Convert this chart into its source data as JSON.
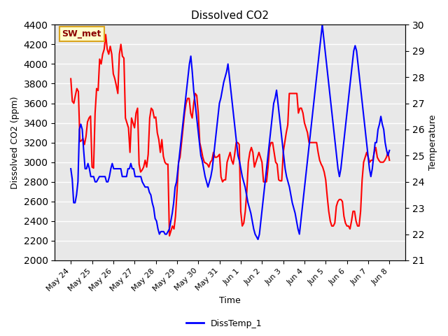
{
  "title": "Dissolved CO2",
  "xlabel": "Time",
  "ylabel_left": "Dissolved CO2 (ppm)",
  "ylabel_right": "Temperature",
  "annotation": "SW_met",
  "ylim_left": [
    2000,
    4400
  ],
  "ylim_right": [
    21.0,
    30.0
  ],
  "bg_color": "#e8e8e8",
  "plot_bg_color": "#e8e8e8",
  "line1_color": "red",
  "line2_color": "blue",
  "line2_label": "DissTemp_1",
  "xtick_labels": [
    "May 24",
    "May 25",
    "May 26",
    "May 27",
    "May 28",
    "May 29",
    "May 30",
    "May 31",
    "Jun 1",
    "Jun 2",
    "Jun 3",
    "Jun 4",
    "Jun 5",
    "Jun 6",
    "Jun 7",
    "Jun 8"
  ],
  "co2_data": [
    3850,
    3620,
    3600,
    3680,
    3750,
    3720,
    3210,
    3220,
    3240,
    3180,
    3260,
    3410,
    3450,
    3470,
    2950,
    2940,
    3500,
    3750,
    3730,
    4050,
    4000,
    4100,
    4150,
    4300,
    4150,
    4100,
    4180,
    4100,
    3900,
    3850,
    3780,
    3700,
    4100,
    4200,
    4080,
    4060,
    3450,
    3400,
    3350,
    3100,
    3450,
    3400,
    3350,
    3500,
    3550,
    2980,
    2900,
    2920,
    2950,
    3020,
    2950,
    3080,
    3450,
    3550,
    3530,
    3450,
    3460,
    3300,
    3230,
    3100,
    3230,
    3060,
    3000,
    2980,
    2980,
    2250,
    2300,
    2350,
    2320,
    2450,
    2700,
    3000,
    3050,
    3200,
    3350,
    3500,
    3600,
    3650,
    3650,
    3500,
    3450,
    3600,
    3700,
    3680,
    3500,
    3200,
    3130,
    3050,
    3000,
    2990,
    2980,
    2950,
    3000,
    3020,
    3100,
    3050,
    3050,
    3060,
    3080,
    2850,
    2800,
    2820,
    2820,
    3000,
    3050,
    3100,
    3020,
    2980,
    3080,
    3200,
    3200,
    3180,
    2500,
    2350,
    2380,
    2500,
    2700,
    3000,
    3100,
    3150,
    3100,
    2950,
    3000,
    3050,
    3100,
    3050,
    3000,
    2800,
    2800,
    2800,
    2950,
    3150,
    3200,
    3200,
    3100,
    3000,
    2980,
    2820,
    2810,
    2810,
    3100,
    3200,
    3300,
    3380,
    3700,
    3700,
    3700,
    3700,
    3700,
    3700,
    3500,
    3550,
    3550,
    3500,
    3400,
    3350,
    3300,
    3200,
    3200,
    3200,
    3200,
    3200,
    3200,
    3100,
    3020,
    2980,
    2950,
    2900,
    2820,
    2650,
    2500,
    2400,
    2350,
    2350,
    2380,
    2550,
    2600,
    2620,
    2620,
    2600,
    2450,
    2380,
    2350,
    2350,
    2320,
    2400,
    2500,
    2500,
    2400,
    2350,
    2350,
    2500,
    2820,
    3000,
    3050,
    3100,
    3050,
    3000,
    3020,
    3020,
    3100,
    3150,
    3050,
    3020,
    3000,
    3000,
    3000,
    3020,
    3050,
    3100,
    3020
  ],
  "temp_data": [
    24.5,
    24.1,
    23.2,
    23.2,
    23.5,
    24.0,
    26.0,
    26.2,
    26.0,
    25.2,
    24.5,
    24.5,
    24.7,
    24.5,
    24.2,
    24.2,
    24.2,
    24.0,
    24.0,
    24.1,
    24.2,
    24.2,
    24.2,
    24.2,
    24.2,
    24.0,
    24.0,
    24.2,
    24.5,
    24.7,
    24.5,
    24.5,
    24.5,
    24.5,
    24.5,
    24.5,
    24.2,
    24.2,
    24.2,
    24.2,
    24.5,
    24.5,
    24.7,
    24.5,
    24.5,
    24.2,
    24.2,
    24.2,
    24.2,
    24.2,
    24.0,
    23.9,
    23.8,
    23.8,
    23.8,
    23.6,
    23.5,
    23.2,
    23.0,
    22.6,
    22.5,
    22.2,
    22.0,
    22.1,
    22.1,
    22.1,
    22.0,
    22.0,
    22.1,
    22.2,
    22.5,
    22.8,
    23.2,
    23.8,
    24.0,
    24.5,
    25.0,
    25.5,
    26.0,
    26.5,
    27.0,
    27.5,
    28.0,
    28.5,
    28.8,
    28.2,
    27.5,
    27.0,
    26.5,
    26.0,
    25.5,
    25.0,
    24.8,
    24.5,
    24.2,
    24.0,
    23.8,
    24.0,
    24.2,
    24.5,
    25.0,
    25.5,
    26.0,
    26.5,
    27.0,
    27.2,
    27.5,
    27.8,
    28.0,
    28.2,
    28.5,
    28.0,
    27.5,
    27.0,
    26.5,
    26.0,
    25.5,
    25.0,
    24.8,
    24.5,
    24.2,
    24.0,
    23.8,
    23.5,
    23.2,
    23.0,
    22.8,
    22.5,
    22.2,
    22.0,
    21.9,
    21.8,
    22.0,
    22.5,
    23.0,
    23.5,
    24.0,
    24.5,
    25.0,
    25.5,
    26.0,
    26.5,
    27.0,
    27.2,
    27.5,
    27.0,
    26.5,
    26.0,
    25.5,
    25.0,
    24.5,
    24.2,
    24.0,
    23.8,
    23.5,
    23.2,
    23.0,
    22.8,
    22.5,
    22.2,
    22.0,
    22.5,
    23.0,
    23.5,
    24.0,
    24.5,
    25.0,
    25.5,
    26.0,
    26.5,
    27.0,
    27.5,
    28.0,
    28.5,
    29.0,
    29.5,
    30.0,
    29.5,
    29.0,
    28.5,
    28.0,
    27.5,
    27.0,
    26.5,
    26.0,
    25.5,
    25.0,
    24.5,
    24.2,
    24.5,
    25.0,
    25.5,
    26.0,
    26.5,
    27.0,
    27.5,
    28.0,
    28.5,
    29.0,
    29.2,
    29.0,
    28.5,
    28.0,
    27.5,
    27.0,
    26.5,
    26.0,
    25.5,
    25.0,
    24.5,
    24.2,
    24.5,
    25.0,
    25.5,
    25.5,
    26.0,
    26.2,
    26.5,
    26.2,
    26.0,
    25.5,
    25.2,
    25.0,
    25.2
  ]
}
